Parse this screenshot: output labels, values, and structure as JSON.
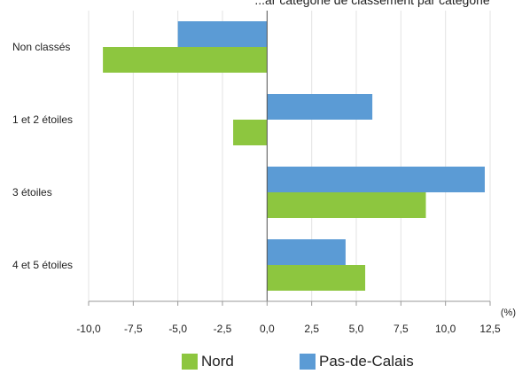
{
  "chart_data": {
    "type": "bar",
    "orientation": "horizontal",
    "title_fragment": "...ar catégorie de classement par catégorie",
    "categories": [
      "Non classés",
      "1 et 2 étoiles",
      "3 étoiles",
      "4 et 5 étoiles"
    ],
    "series": [
      {
        "name": "Pas-de-Calais",
        "color": "#5b9bd5",
        "values": [
          -5.0,
          5.9,
          12.2,
          4.4
        ]
      },
      {
        "name": "Nord",
        "color": "#8dc63f",
        "values": [
          -9.2,
          -1.9,
          8.9,
          5.5
        ]
      }
    ],
    "xlim": [
      -10.0,
      12.5
    ],
    "xticks": [
      "-10,0",
      "-7,5",
      "-5,0",
      "-2,5",
      "0,0",
      "2,5",
      "5,0",
      "7,5",
      "10,0",
      "12,5"
    ],
    "xtick_values": [
      -10,
      -7.5,
      -5,
      -2.5,
      0,
      2.5,
      5,
      7.5,
      10,
      12.5
    ],
    "unit": "(%)",
    "grid": true,
    "legend_position": "bottom",
    "legend": [
      {
        "label": "Nord",
        "color": "#8dc63f"
      },
      {
        "label": "Pas-de-Calais",
        "color": "#5b9bd5"
      }
    ]
  }
}
